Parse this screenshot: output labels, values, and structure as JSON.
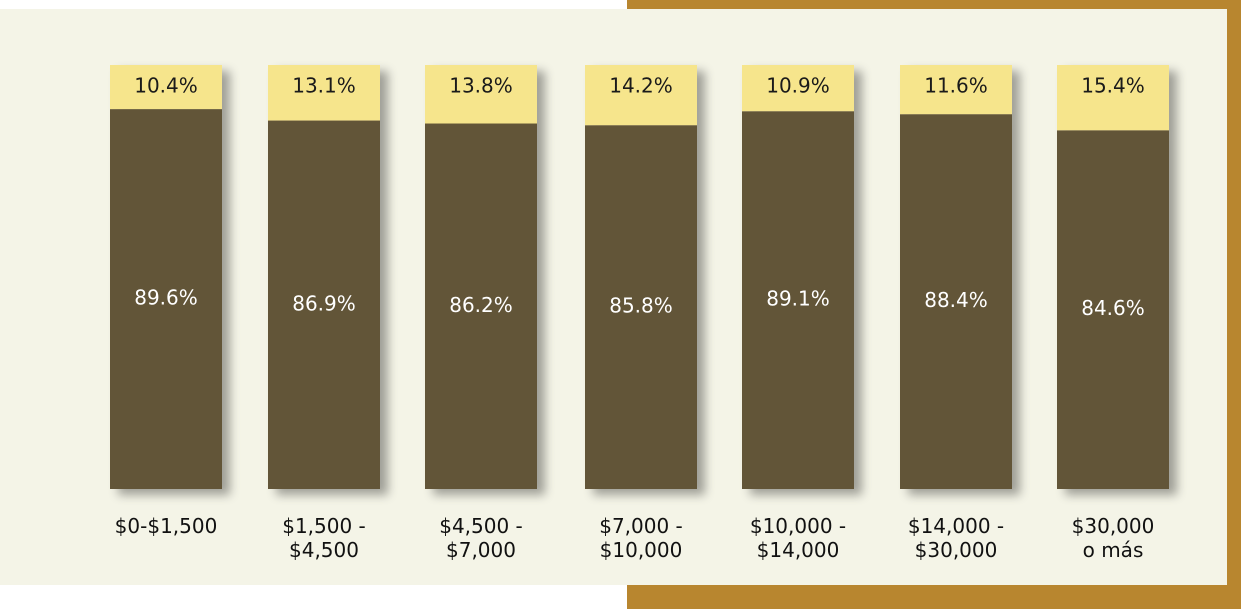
{
  "chart_data": {
    "type": "stacked_bar",
    "categories": [
      [
        "$0-$1,500"
      ],
      [
        "$1,500 -",
        "$4,500"
      ],
      [
        "$4,500 -",
        "$7,000"
      ],
      [
        "$7,000 -",
        "$10,000"
      ],
      [
        "$10,000 -",
        "$14,000"
      ],
      [
        "$14,000 -",
        "$30,000"
      ],
      [
        "$30,000",
        "o más"
      ]
    ],
    "series": [
      {
        "color": "#625439",
        "values": [
          89.6,
          86.9,
          86.2,
          85.8,
          89.1,
          88.4,
          84.6
        ],
        "value_labels": [
          "89.6%",
          "86.9%",
          "86.2%",
          "85.8%",
          "89.1%",
          "88.4%",
          "84.6%"
        ]
      },
      {
        "color": "#f6e58c",
        "values": [
          10.4,
          13.1,
          13.8,
          14.2,
          10.9,
          11.6,
          15.4
        ],
        "value_labels": [
          "10.4%",
          "13.1%",
          "13.8%",
          "14.2%",
          "10.9%",
          "11.6%",
          "15.4%"
        ]
      }
    ],
    "ylim": [
      0,
      100
    ]
  }
}
